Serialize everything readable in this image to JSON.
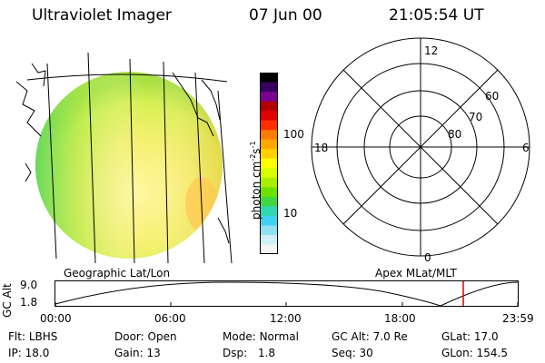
{
  "header": {
    "title": "Ultraviolet Imager",
    "date": "07 Jun 00",
    "time": "21:05:54 UT"
  },
  "colorbar": {
    "unit_label": "photon cm",
    "unit_sup1": "-2",
    "unit_mid": "s",
    "unit_sup2": "-1",
    "ticks": [
      "100",
      "10"
    ],
    "colors": [
      "#000000",
      "#3a0060",
      "#7a0090",
      "#b00000",
      "#e00000",
      "#ff3000",
      "#ff7a00",
      "#ffa800",
      "#ffd000",
      "#ffff00",
      "#d8ff00",
      "#a8f000",
      "#70e000",
      "#40d840",
      "#30d8b0",
      "#40d0f0",
      "#90e0f0",
      "#d0f0f8",
      "#f4f4f4"
    ]
  },
  "polar": {
    "labels": {
      "mlt_top": "12",
      "mlt_left": "18",
      "mlt_right": "6",
      "mlt_bottom": "0",
      "lat_60": "60",
      "lat_70": "70",
      "lat_80": "80"
    }
  },
  "map": {
    "caption_left": "Geographic Lat/Lon",
    "caption_right": "Apex MLat/MLT"
  },
  "altitude": {
    "axis_label": "GC Alt",
    "y_ticks": [
      "9.0",
      "1.8"
    ],
    "x_ticks": [
      "00:00",
      "06:00",
      "12:00",
      "18:00",
      "23:59"
    ]
  },
  "status": {
    "flt_label": "Flt:",
    "flt": "LBHS",
    "ip_label": "IP:",
    "ip": "18.0",
    "door_label": "Door:",
    "door": "Open",
    "gain_label": "Gain:",
    "gain": "13",
    "mode_label": "Mode:",
    "mode": "Normal",
    "dsp_label": "Dsp:",
    "dsp": "1.8",
    "gcalt_label": "GC Alt:",
    "gcalt": "7.0 Re",
    "seq_label": "Seq:",
    "seq": "30",
    "glat_label": "GLat:",
    "glat": "17.0",
    "glon_label": "GLon:",
    "glon": "154.5"
  }
}
